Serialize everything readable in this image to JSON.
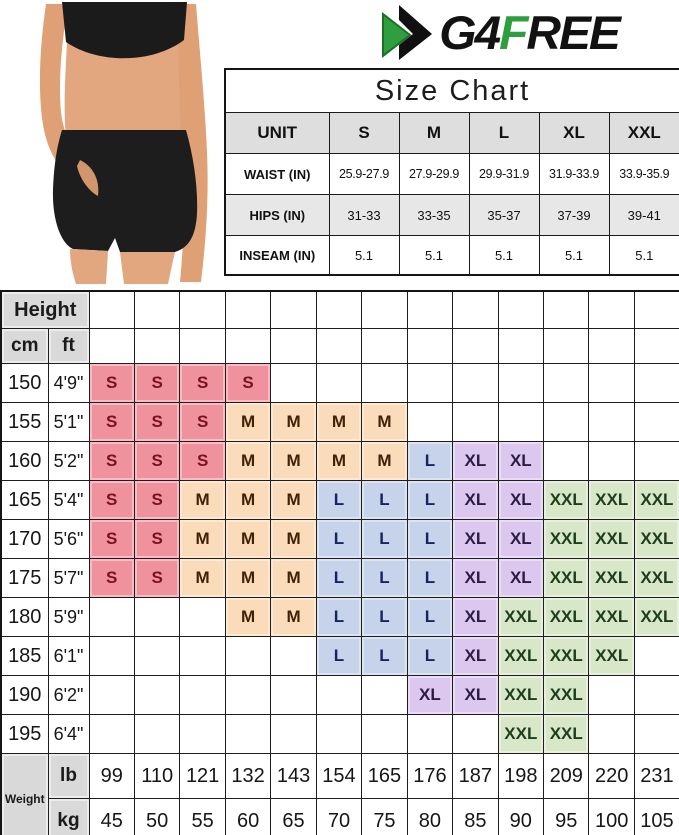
{
  "brand": {
    "name_part1": "G4",
    "name_part2": "F",
    "name_part3": "REE",
    "icon": "double-chevron-arrow-icon",
    "green": "#2f9e3e",
    "black": "#121212"
  },
  "photo": {
    "description": "model wearing black sports bra and black high-waist running shorts, hand in pocket"
  },
  "chart_data": [
    {
      "type": "table",
      "title": "Size Chart",
      "columns": [
        "UNIT",
        "S",
        "M",
        "L",
        "XL",
        "XXL"
      ],
      "rows": [
        {
          "label": "WAIST (IN)",
          "values": [
            "25.9-27.9",
            "27.9-29.9",
            "29.9-31.9",
            "31.9-33.9",
            "33.9-35.9"
          ]
        },
        {
          "label": "HIPS (IN)",
          "values": [
            "31-33",
            "33-35",
            "35-37",
            "37-39",
            "39-41"
          ]
        },
        {
          "label": "INSEAM (IN)",
          "values": [
            "5.1",
            "5.1",
            "5.1",
            "5.1",
            "5.1"
          ]
        }
      ]
    },
    {
      "type": "heatmap",
      "title": "Height vs Weight size matrix",
      "corner_label": "Height",
      "row_units": [
        "cm",
        "ft"
      ],
      "weight_label": "Weight",
      "weight_units": [
        "lb",
        "kg"
      ],
      "lb": [
        "99",
        "110",
        "121",
        "132",
        "143",
        "154",
        "165",
        "176",
        "187",
        "198",
        "209",
        "220",
        "231"
      ],
      "kg": [
        "45",
        "50",
        "55",
        "60",
        "65",
        "70",
        "75",
        "80",
        "85",
        "90",
        "95",
        "100",
        "105"
      ],
      "rows": [
        {
          "cm": "150",
          "ft": "4'9\"",
          "cells": [
            "S",
            "S",
            "S",
            "S",
            "",
            "",
            "",
            "",
            "",
            "",
            "",
            "",
            ""
          ]
        },
        {
          "cm": "155",
          "ft": "5'1\"",
          "cells": [
            "S",
            "S",
            "S",
            "M",
            "M",
            "M",
            "M",
            "",
            "",
            "",
            "",
            "",
            ""
          ]
        },
        {
          "cm": "160",
          "ft": "5'2\"",
          "cells": [
            "S",
            "S",
            "S",
            "M",
            "M",
            "M",
            "M",
            "L",
            "XL",
            "XL",
            "",
            "",
            ""
          ]
        },
        {
          "cm": "165",
          "ft": "5'4\"",
          "cells": [
            "S",
            "S",
            "M",
            "M",
            "M",
            "L",
            "L",
            "L",
            "XL",
            "XL",
            "XXL",
            "XXL",
            "XXL"
          ]
        },
        {
          "cm": "170",
          "ft": "5'6\"",
          "cells": [
            "S",
            "S",
            "M",
            "M",
            "M",
            "L",
            "L",
            "L",
            "XL",
            "XL",
            "XXL",
            "XXL",
            "XXL"
          ]
        },
        {
          "cm": "175",
          "ft": "5'7\"",
          "cells": [
            "S",
            "S",
            "M",
            "M",
            "M",
            "L",
            "L",
            "L",
            "XL",
            "XL",
            "XXL",
            "XXL",
            "XXL"
          ]
        },
        {
          "cm": "180",
          "ft": "5'9\"",
          "cells": [
            "",
            "",
            "",
            "M",
            "M",
            "L",
            "L",
            "L",
            "XL",
            "XXL",
            "XXL",
            "XXL",
            "XXL"
          ]
        },
        {
          "cm": "185",
          "ft": "6'1\"",
          "cells": [
            "",
            "",
            "",
            "",
            "",
            "L",
            "L",
            "L",
            "XL",
            "XXL",
            "XXL",
            "XXL",
            ""
          ]
        },
        {
          "cm": "190",
          "ft": "6'2\"",
          "cells": [
            "",
            "",
            "",
            "",
            "",
            "",
            "",
            "XL",
            "XL",
            "XXL",
            "XXL",
            "",
            ""
          ]
        },
        {
          "cm": "195",
          "ft": "6'4\"",
          "cells": [
            "",
            "",
            "",
            "",
            "",
            "",
            "",
            "",
            "",
            "XXL",
            "XXL",
            "",
            ""
          ]
        }
      ],
      "palette": {
        "S": {
          "bg": "#f0919e",
          "fg": "#7a1120"
        },
        "M": {
          "bg": "#fbdcba",
          "fg": "#3f2208"
        },
        "L": {
          "bg": "#c7d3eb",
          "fg": "#17255f"
        },
        "XL": {
          "bg": "#dcc7ee",
          "fg": "#2c1c44"
        },
        "XXL": {
          "bg": "#d7e7c8",
          "fg": "#1e3d1e"
        }
      },
      "header_gray": "#d9d9d9"
    }
  ]
}
